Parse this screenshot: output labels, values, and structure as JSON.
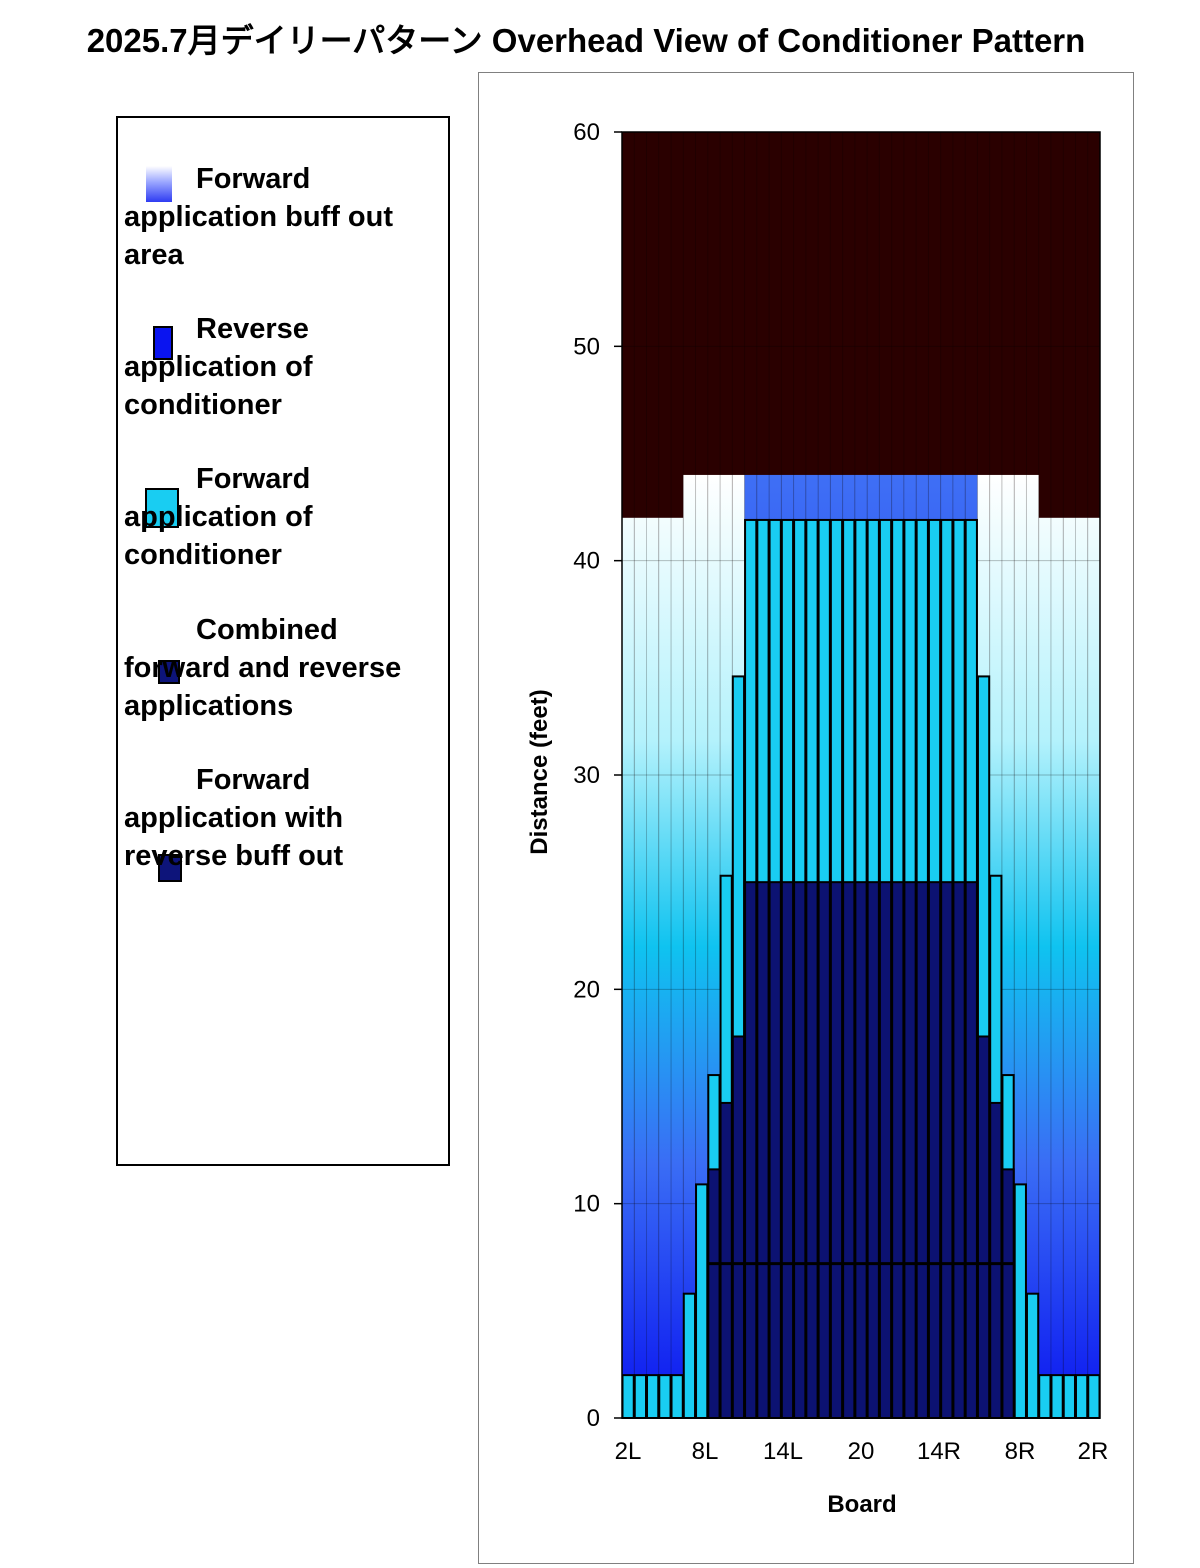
{
  "title": "2025.7月デイリーパターン Overhead View of Conditioner Pattern",
  "legend": [
    {
      "label": "Forward application buff out area",
      "color": "#2f3cf2"
    },
    {
      "label": "Reverse application of conditioner",
      "color": "#0a14f0"
    },
    {
      "label": "Forward application of conditioner",
      "color": "#19cdf2"
    },
    {
      "label": "Combined forward and reverse applications",
      "color": "#0d147a"
    },
    {
      "label": "Forward application with reverse buff out",
      "color": "#0d147a"
    }
  ],
  "colors": {
    "lane_oil_free": "#2a0000",
    "forward_conditioner": "#19cdf2",
    "combined": "#0c1272",
    "reverse": "#0a14f0",
    "buff_out_light": "#ffffff"
  },
  "chart_data": {
    "type": "heatmap",
    "xlabel": "Board",
    "ylabel": "Distance (feet)",
    "ylim": [
      0,
      60
    ],
    "yticks": [
      0,
      10,
      20,
      30,
      40,
      50,
      60
    ],
    "xtick_labels": [
      "2L",
      "8L",
      "14L",
      "20",
      "14R",
      "8R",
      "2R"
    ],
    "boards": 39,
    "lane_length_ft": 60,
    "forward_conditioner_ft": [
      2,
      2,
      2,
      2,
      2,
      5.8,
      10.9,
      16,
      25.3,
      34.6,
      41.9,
      41.9,
      41.9,
      41.9,
      41.9,
      41.9,
      41.9,
      41.9,
      41.9,
      41.9,
      41.9,
      41.9,
      41.9,
      41.9,
      41.9,
      41.9,
      41.9,
      41.9,
      41.9,
      34.6,
      25.3,
      16,
      10.9,
      5.8,
      2,
      2,
      2,
      2,
      2
    ],
    "combined_ft": [
      0,
      0,
      0,
      0,
      0,
      0,
      0,
      11.6,
      14.7,
      17.8,
      25,
      25,
      25,
      25,
      25,
      25,
      25,
      25,
      25,
      25,
      25,
      25,
      25,
      25,
      25,
      25,
      25,
      25,
      25,
      17.8,
      14.7,
      11.6,
      0,
      0,
      0,
      0,
      0,
      0,
      0
    ],
    "buff_out_ft": [
      42,
      42,
      42,
      42,
      42,
      44,
      44,
      44,
      44,
      44,
      44,
      44,
      44,
      44,
      44,
      44,
      44,
      44,
      44,
      44,
      44,
      44,
      44,
      44,
      44,
      44,
      44,
      44,
      44,
      44,
      44,
      44,
      44,
      44,
      42,
      42,
      42,
      42,
      42
    ],
    "reverse_line_ft": 7.2
  }
}
